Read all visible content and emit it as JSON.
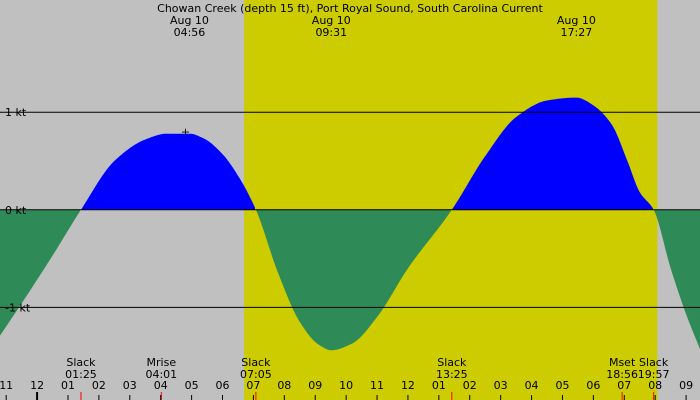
{
  "chart_data": {
    "type": "area",
    "title": "Chowan Creek (depth 15 ft), Port Royal Sound, South Carolina Current",
    "unit": "kt",
    "x_unit": "hour",
    "xlim": [
      10.8,
      33.45
    ],
    "ylim": [
      -1.95,
      2.15
    ],
    "y_ticks": [
      {
        "value": 1,
        "label": "1 kt"
      },
      {
        "value": 0,
        "label": "0 kt"
      },
      {
        "value": -1,
        "label": "-1 kt"
      }
    ],
    "x_ticks": [
      {
        "value": 11,
        "label": "11"
      },
      {
        "value": 12,
        "label": "12"
      },
      {
        "value": 13,
        "label": "01"
      },
      {
        "value": 14,
        "label": "02"
      },
      {
        "value": 15,
        "label": "03"
      },
      {
        "value": 16,
        "label": "04"
      },
      {
        "value": 17,
        "label": "05"
      },
      {
        "value": 18,
        "label": "06"
      },
      {
        "value": 19,
        "label": "07"
      },
      {
        "value": 20,
        "label": "08"
      },
      {
        "value": 21,
        "label": "09"
      },
      {
        "value": 22,
        "label": "10"
      },
      {
        "value": 23,
        "label": "11"
      },
      {
        "value": 24,
        "label": "12"
      },
      {
        "value": 25,
        "label": "01"
      },
      {
        "value": 26,
        "label": "02"
      },
      {
        "value": 27,
        "label": "03"
      },
      {
        "value": 28,
        "label": "04"
      },
      {
        "value": 29,
        "label": "05"
      },
      {
        "value": 30,
        "label": "06"
      },
      {
        "value": 31,
        "label": "07"
      },
      {
        "value": 32,
        "label": "08"
      },
      {
        "value": 33,
        "label": "09"
      }
    ],
    "daylight": {
      "start": 18.7,
      "end": 32.07
    },
    "colors": {
      "night": "#c0c0c0",
      "day": "#cccc00",
      "flood": "#0000ff",
      "ebb": "#2e8b57",
      "event_tick": "#ff0000",
      "midnight_tick": "#000000"
    },
    "series": [
      {
        "values": [
          [
            10.8,
            -1.29
          ],
          [
            11.5,
            -0.96
          ],
          [
            12.5,
            -0.47
          ],
          [
            13.42,
            0.0
          ],
          [
            14.5,
            0.5
          ],
          [
            15.5,
            0.72
          ],
          [
            16.2,
            0.78
          ],
          [
            16.93,
            0.78
          ],
          [
            17.4,
            0.73
          ],
          [
            18.0,
            0.57
          ],
          [
            18.5,
            0.35
          ],
          [
            19.08,
            0.0
          ],
          [
            19.8,
            -0.65
          ],
          [
            20.5,
            -1.15
          ],
          [
            21.1,
            -1.38
          ],
          [
            21.52,
            -1.44
          ],
          [
            22.2,
            -1.37
          ],
          [
            23.0,
            -1.1
          ],
          [
            24.0,
            -0.6
          ],
          [
            25.42,
            0.0
          ],
          [
            26.5,
            0.55
          ],
          [
            27.5,
            0.95
          ],
          [
            28.5,
            1.12
          ],
          [
            29.45,
            1.15
          ],
          [
            30.0,
            1.07
          ],
          [
            30.6,
            0.87
          ],
          [
            31.1,
            0.5
          ],
          [
            31.5,
            0.18
          ],
          [
            31.95,
            0.0
          ],
          [
            32.5,
            -0.6
          ],
          [
            33.0,
            -1.07
          ],
          [
            33.45,
            -1.43
          ]
        ]
      }
    ],
    "extremes": [
      {
        "date": "Aug 10",
        "time": "04:56",
        "x": 16.93
      },
      {
        "date": "Aug 10",
        "time": "09:31",
        "x": 21.52
      },
      {
        "date": "Aug 10",
        "time": "17:27",
        "x": 29.45
      }
    ],
    "events": [
      {
        "name": "Slack",
        "time": "01:25",
        "x": 13.42
      },
      {
        "name": "Mrise",
        "time": "04:01",
        "x": 16.02
      },
      {
        "name": "Slack",
        "time": "07:05",
        "x": 19.08
      },
      {
        "name": "Slack",
        "time": "13:25",
        "x": 25.42
      },
      {
        "name": "Mset",
        "time": "18:56",
        "x": 30.93
      },
      {
        "name": "Slack",
        "time": "19:57",
        "x": 31.95
      }
    ],
    "marker": {
      "symbol": "+",
      "x": 16.8,
      "y": 0.8
    },
    "grid": "horizontal at labeled values"
  }
}
